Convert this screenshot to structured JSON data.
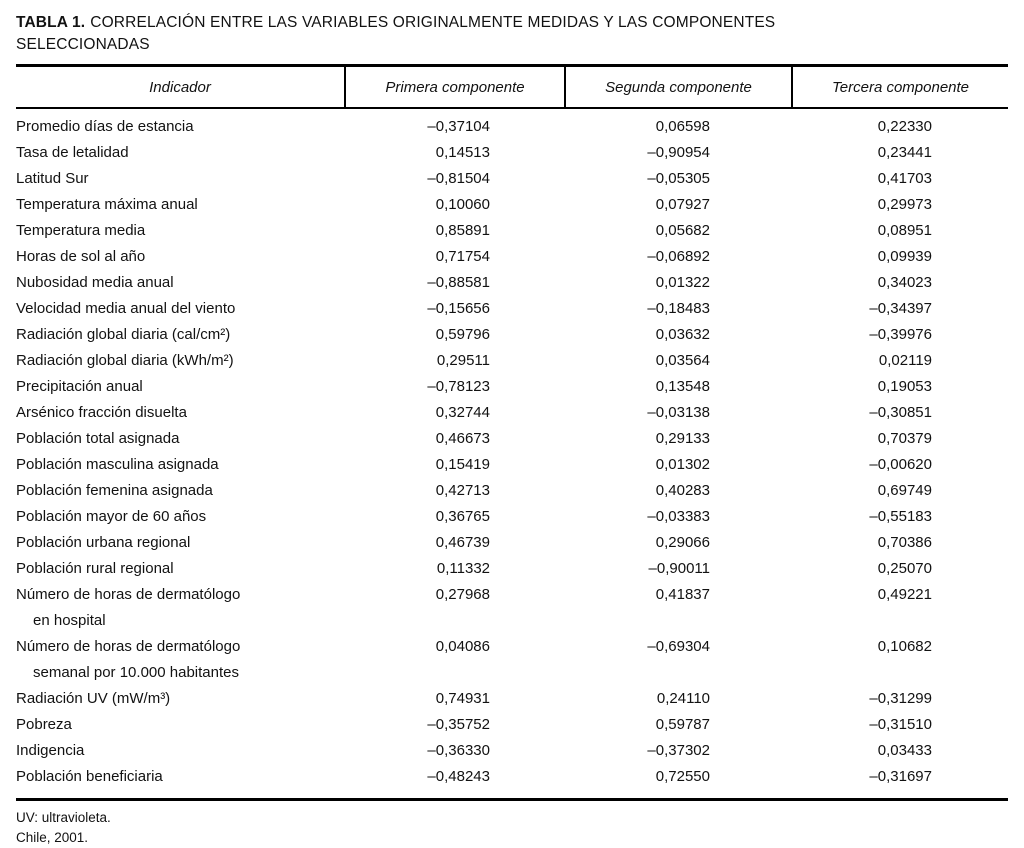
{
  "title": {
    "label": "TABLA 1.",
    "line1": "CORRELACIÓN ENTRE LAS VARIABLES ORIGINALMENTE MEDIDAS Y LAS COMPONENTES",
    "line2": "SELECCIONADAS"
  },
  "table": {
    "columns": [
      "Indicador",
      "Primera componente",
      "Segunda componente",
      "Tercera componente"
    ],
    "rows": [
      {
        "label_lines": [
          "Promedio días de estancia"
        ],
        "values": [
          "–0,37104",
          "0,06598",
          "0,22330"
        ]
      },
      {
        "label_lines": [
          "Tasa de letalidad"
        ],
        "values": [
          "0,14513",
          "–0,90954",
          "0,23441"
        ]
      },
      {
        "label_lines": [
          "Latitud Sur"
        ],
        "values": [
          "–0,81504",
          "–0,05305",
          "0,41703"
        ]
      },
      {
        "label_lines": [
          "Temperatura máxima anual"
        ],
        "values": [
          "0,10060",
          "0,07927",
          "0,29973"
        ]
      },
      {
        "label_lines": [
          "Temperatura media"
        ],
        "values": [
          "0,85891",
          "0,05682",
          "0,08951"
        ]
      },
      {
        "label_lines": [
          "Horas de sol al año"
        ],
        "values": [
          "0,71754",
          "–0,06892",
          "0,09939"
        ]
      },
      {
        "label_lines": [
          "Nubosidad media anual"
        ],
        "values": [
          "–0,88581",
          "0,01322",
          "0,34023"
        ]
      },
      {
        "label_lines": [
          "Velocidad media anual del viento"
        ],
        "values": [
          "–0,15656",
          "–0,18483",
          "–0,34397"
        ]
      },
      {
        "label_lines": [
          "Radiación global diaria (cal/cm²)"
        ],
        "values": [
          "0,59796",
          "0,03632",
          "–0,39976"
        ]
      },
      {
        "label_lines": [
          "Radiación global diaria (kWh/m²)"
        ],
        "values": [
          "0,29511",
          "0,03564",
          "0,02119"
        ]
      },
      {
        "label_lines": [
          "Precipitación anual"
        ],
        "values": [
          "–0,78123",
          "0,13548",
          "0,19053"
        ]
      },
      {
        "label_lines": [
          "Arsénico fracción disuelta"
        ],
        "values": [
          "0,32744",
          "–0,03138",
          "–0,30851"
        ]
      },
      {
        "label_lines": [
          "Población total asignada"
        ],
        "values": [
          "0,46673",
          "0,29133",
          "0,70379"
        ]
      },
      {
        "label_lines": [
          "Población masculina asignada"
        ],
        "values": [
          "0,15419",
          "0,01302",
          "–0,00620"
        ]
      },
      {
        "label_lines": [
          "Población femenina asignada"
        ],
        "values": [
          "0,42713",
          "0,40283",
          "0,69749"
        ]
      },
      {
        "label_lines": [
          "Población mayor de 60 años"
        ],
        "values": [
          "0,36765",
          "–0,03383",
          "–0,55183"
        ]
      },
      {
        "label_lines": [
          "Población urbana regional"
        ],
        "values": [
          "0,46739",
          "0,29066",
          "0,70386"
        ]
      },
      {
        "label_lines": [
          "Población rural regional"
        ],
        "values": [
          "0,11332",
          "–0,90011",
          "0,25070"
        ]
      },
      {
        "label_lines": [
          "Número de horas de dermatólogo",
          "en hospital"
        ],
        "values": [
          "0,27968",
          "0,41837",
          "0,49221"
        ]
      },
      {
        "label_lines": [
          "Número de horas de dermatólogo",
          "semanal por 10.000 habitantes"
        ],
        "values": [
          "0,04086",
          "–0,69304",
          "0,10682"
        ]
      },
      {
        "label_lines": [
          "Radiación UV (mW/m³)"
        ],
        "values": [
          "0,74931",
          "0,24110",
          "–0,31299"
        ]
      },
      {
        "label_lines": [
          "Pobreza"
        ],
        "values": [
          "–0,35752",
          "0,59787",
          "–0,31510"
        ]
      },
      {
        "label_lines": [
          "Indigencia"
        ],
        "values": [
          "–0,36330",
          "–0,37302",
          "0,03433"
        ]
      },
      {
        "label_lines": [
          "Población beneficiaria"
        ],
        "values": [
          "–0,48243",
          "0,72550",
          "–0,31697"
        ]
      }
    ]
  },
  "footnotes": [
    "UV: ultravioleta.",
    "Chile, 2001."
  ],
  "colors": {
    "text": "#121212",
    "rule": "#000000",
    "background": "#ffffff"
  }
}
